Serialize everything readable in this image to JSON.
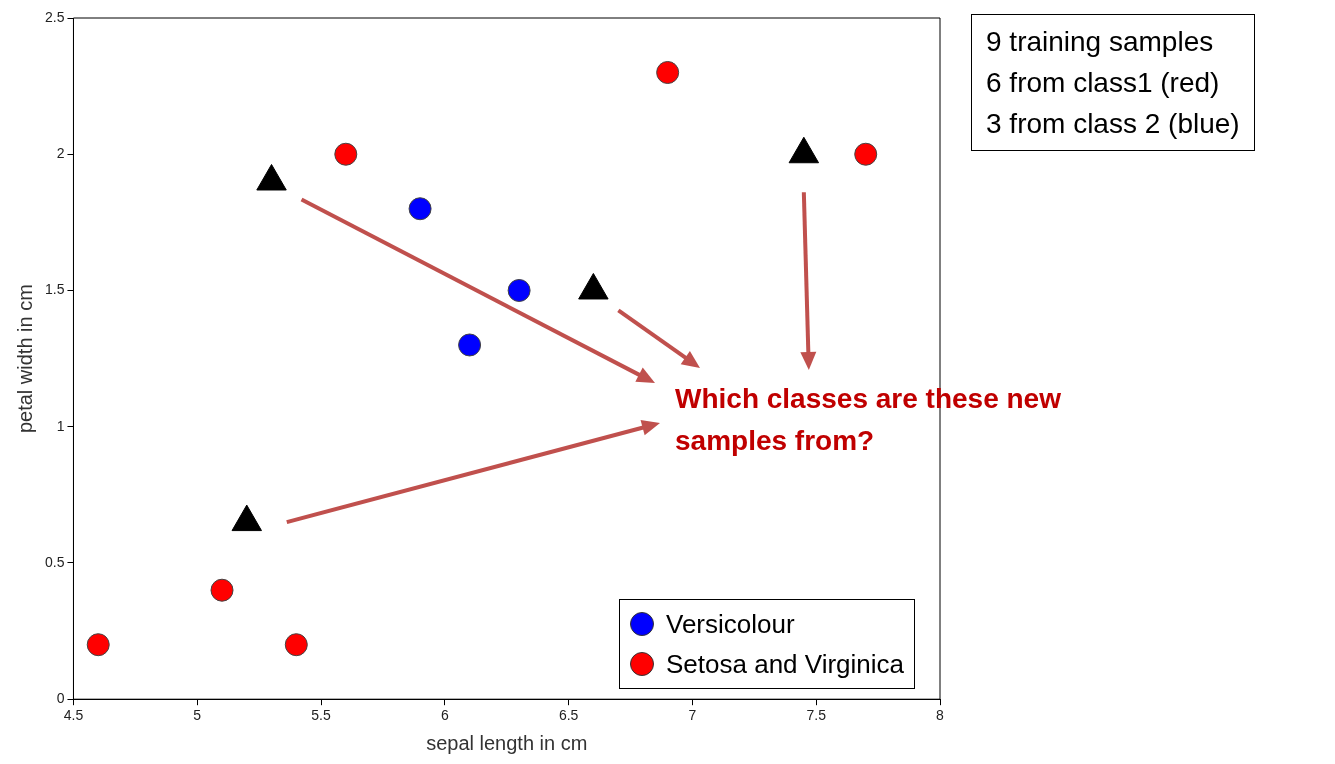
{
  "chart_data": {
    "type": "scatter",
    "xlabel": "sepal length in cm",
    "ylabel": "petal width in cm",
    "xlim": [
      4.5,
      8
    ],
    "xticks": [
      4.5,
      5,
      5.5,
      6,
      6.5,
      7,
      7.5,
      8
    ],
    "ylim": [
      0,
      2.5
    ],
    "yticks": [
      0,
      0.5,
      1,
      1.5,
      2,
      2.5
    ],
    "grid": false,
    "legend": "bottom right",
    "marker": "circle",
    "series": [
      {
        "name": "Versicolour",
        "color": "#0000ff",
        "x": [
          5.9,
          6.3,
          6.1
        ],
        "values": [
          1.8,
          1.5,
          1.3
        ]
      },
      {
        "name": "Setosa and Virginica",
        "color": "#ff0000",
        "x": [
          4.6,
          5.1,
          5.4,
          5.6,
          6.9,
          7.7
        ],
        "values": [
          0.2,
          0.4,
          0.2,
          2.0,
          2.3,
          2.0
        ]
      },
      {
        "color": "#000000",
        "marker": "triangle",
        "x": [
          5.3,
          7.45,
          6.6,
          5.2
        ],
        "values": [
          1.9,
          2.0,
          1.5,
          0.65
        ]
      }
    ],
    "annotations": [
      "Which classes are these new samples from?",
      "9 training samples",
      "6 from class1 (red)",
      "3 from class 2 (blue)"
    ]
  }
}
